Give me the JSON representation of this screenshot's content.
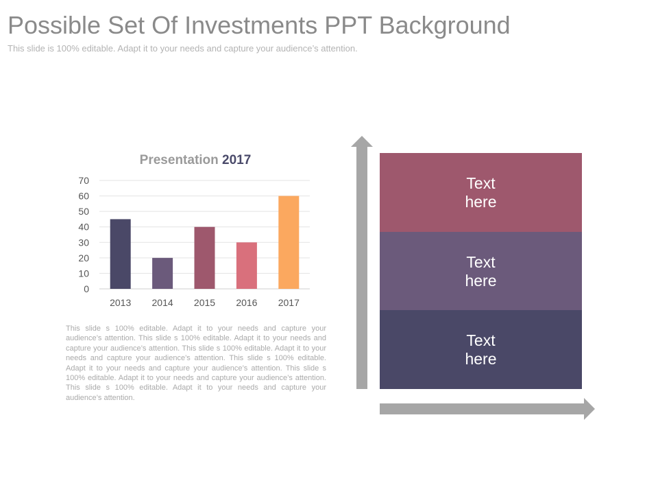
{
  "header": {
    "title": "Possible Set Of Investments PPT Background",
    "subtitle": "This slide is 100% editable. Adapt it to your needs and capture your audience’s attention."
  },
  "chart_data": {
    "type": "bar",
    "title_prefix": "Presentation",
    "title_year": "2017",
    "categories": [
      "2013",
      "2014",
      "2015",
      "2016",
      "2017"
    ],
    "values": [
      45,
      20,
      40,
      30,
      60
    ],
    "colors": [
      "#4a4867",
      "#6b5a7b",
      "#9e586d",
      "#d9707c",
      "#fba85f"
    ],
    "yticks": [
      "0",
      "10",
      "20",
      "30",
      "40",
      "50",
      "60",
      "70"
    ],
    "ylim": [
      0,
      70
    ],
    "grid": true
  },
  "body_text": "This slide s 100% editable. Adapt it to your needs and capture your audience’s attention. This slide s 100% editable. Adapt it to your needs and capture your audience’s attention. This slide s 100% editable. Adapt it to your needs and capture your audience’s attention. This slide s 100% editable. Adapt it to your needs and capture your audience’s attention. This slide s 100% editable. Adapt it to your needs and capture your audience’s attention. This slide s 100% editable. Adapt it to your needs and capture your audience’s attention.",
  "stack": {
    "blocks": [
      {
        "label": "Text here",
        "color": "#9e586d"
      },
      {
        "label": "Text here",
        "color": "#6b5a7b"
      },
      {
        "label": "Text here",
        "color": "#4a4867"
      }
    ],
    "arrow_color": "#a6a6a6"
  }
}
